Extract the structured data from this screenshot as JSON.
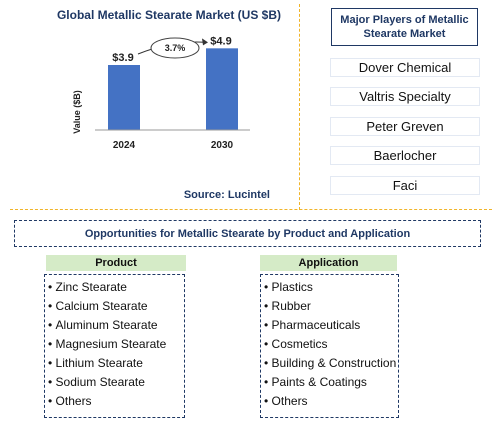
{
  "chart_data": {
    "type": "bar",
    "title": "Global Metallic Stearate Market (US $B)",
    "ylabel": "Value ($B)",
    "categories": [
      "2024",
      "2030"
    ],
    "values": [
      3.9,
      4.9
    ],
    "value_labels": [
      "$3.9",
      "$4.9"
    ],
    "growth_label": "3.7%",
    "ylim": [
      0,
      6
    ],
    "grid": false,
    "colors": {
      "bar": "#4472c4"
    }
  },
  "source": "Source: Lucintel",
  "players": {
    "title": "Major Players of Metallic Stearate Market",
    "items": [
      "Dover Chemical",
      "Valtris Specialty",
      "Peter Greven",
      "Baerlocher",
      "Faci"
    ]
  },
  "opportunities": {
    "title": "Opportunities for Metallic Stearate by Product and Application",
    "product": {
      "header": "Product",
      "items": [
        "Zinc Stearate",
        "Calcium Stearate",
        "Aluminum Stearate",
        "Magnesium Stearate",
        "Lithium Stearate",
        "Sodium Stearate",
        "Others"
      ]
    },
    "application": {
      "header": "Application",
      "items": [
        "Plastics",
        "Rubber",
        "Pharmaceuticals",
        "Cosmetics",
        "Building & Construction",
        "Paints & Coatings",
        "Others"
      ]
    }
  },
  "colors": {
    "title": "#1f3864",
    "divider": "#f0b429",
    "header_fill": "#d5ebc7"
  }
}
